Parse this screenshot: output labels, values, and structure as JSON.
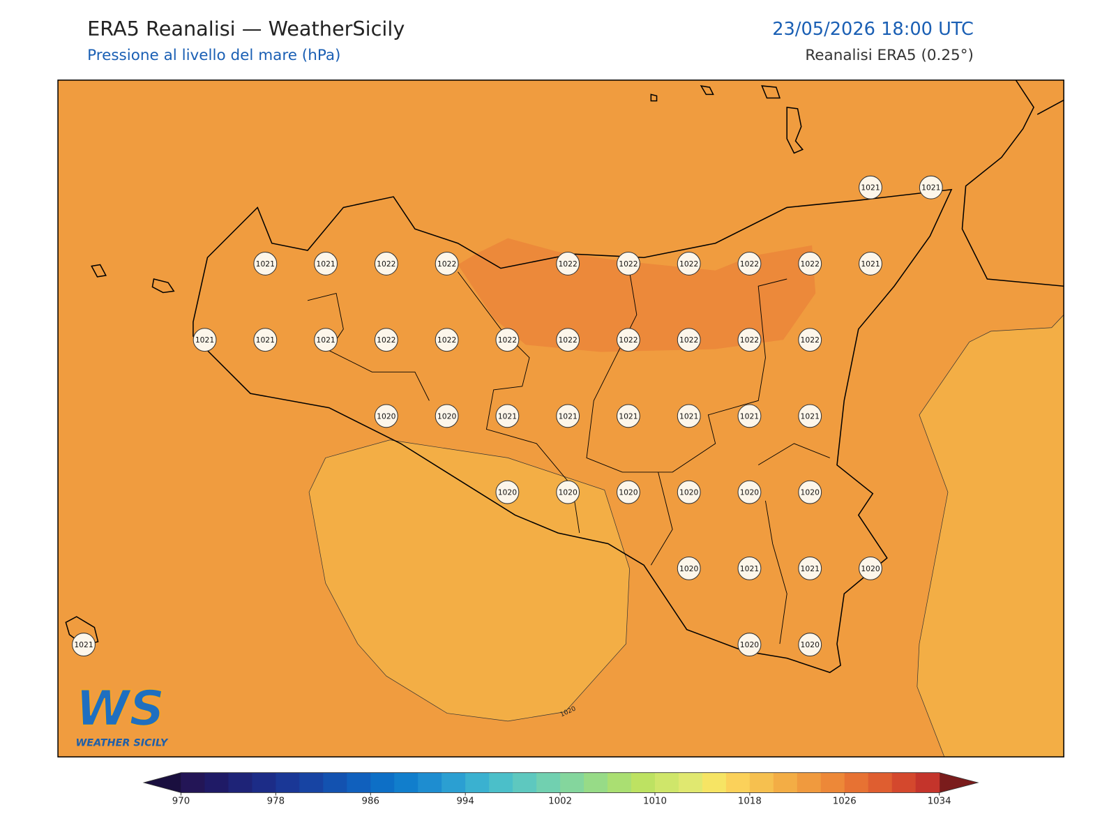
{
  "header": {
    "title": "ERA5 Reanalisi — WeatherSicily",
    "subtitle": "Pressione al livello del mare (hPa)",
    "datetime": "23/05/2026 18:00 UTC",
    "source": "Reanalisi ERA5 (0.25°)"
  },
  "map": {
    "pressure_grid": [
      [
        null,
        null,
        null,
        null,
        null,
        null,
        null,
        null,
        null,
        null,
        null,
        null,
        null,
        1021,
        1021
      ],
      [
        null,
        null,
        null,
        1021,
        1021,
        1022,
        1022,
        null,
        1022,
        1022,
        1022,
        1022,
        1022,
        1021,
        null
      ],
      [
        null,
        null,
        1021,
        1021,
        1021,
        1022,
        1022,
        1022,
        1022,
        1022,
        1022,
        1022,
        1022,
        null,
        null
      ],
      [
        null,
        null,
        null,
        null,
        null,
        1020,
        1020,
        1021,
        1021,
        1021,
        1021,
        1021,
        1021,
        null,
        null
      ],
      [
        null,
        null,
        null,
        null,
        null,
        null,
        null,
        1020,
        1020,
        1020,
        1020,
        1020,
        1020,
        null,
        null
      ],
      [
        null,
        null,
        null,
        null,
        null,
        null,
        null,
        null,
        null,
        null,
        1020,
        1021,
        1021,
        1020,
        null
      ],
      [
        1021,
        null,
        null,
        null,
        null,
        null,
        null,
        null,
        null,
        null,
        null,
        1020,
        1020,
        null,
        null
      ]
    ],
    "contour_label": 1020
  },
  "colorbar": {
    "min": 970,
    "max": 1034,
    "ticks": [
      970,
      978,
      986,
      994,
      1002,
      1010,
      1018,
      1026,
      1034
    ],
    "colors": [
      "#231556",
      "#1f1a66",
      "#1e2377",
      "#1c2c87",
      "#1a3796",
      "#1744a3",
      "#1352b0",
      "#1060bd",
      "#0d6fc6",
      "#117ecc",
      "#1e8dd0",
      "#2b9fd2",
      "#3ab1d0",
      "#4bbfc9",
      "#5ec8bf",
      "#71d0b0",
      "#84d69d",
      "#97db87",
      "#aadf72",
      "#bde262",
      "#cfe66a",
      "#e0e870",
      "#f6e464",
      "#fbd15a",
      "#f6c04f",
      "#f3ad45",
      "#f09a3e",
      "#ed8838",
      "#e77233",
      "#df5e30",
      "#d4482d",
      "#c4342b"
    ],
    "under_color": "#1a0f3f",
    "over_color": "#7a1c1c"
  },
  "logo": {
    "mark": "WS",
    "text": "WEATHER SICILY"
  }
}
